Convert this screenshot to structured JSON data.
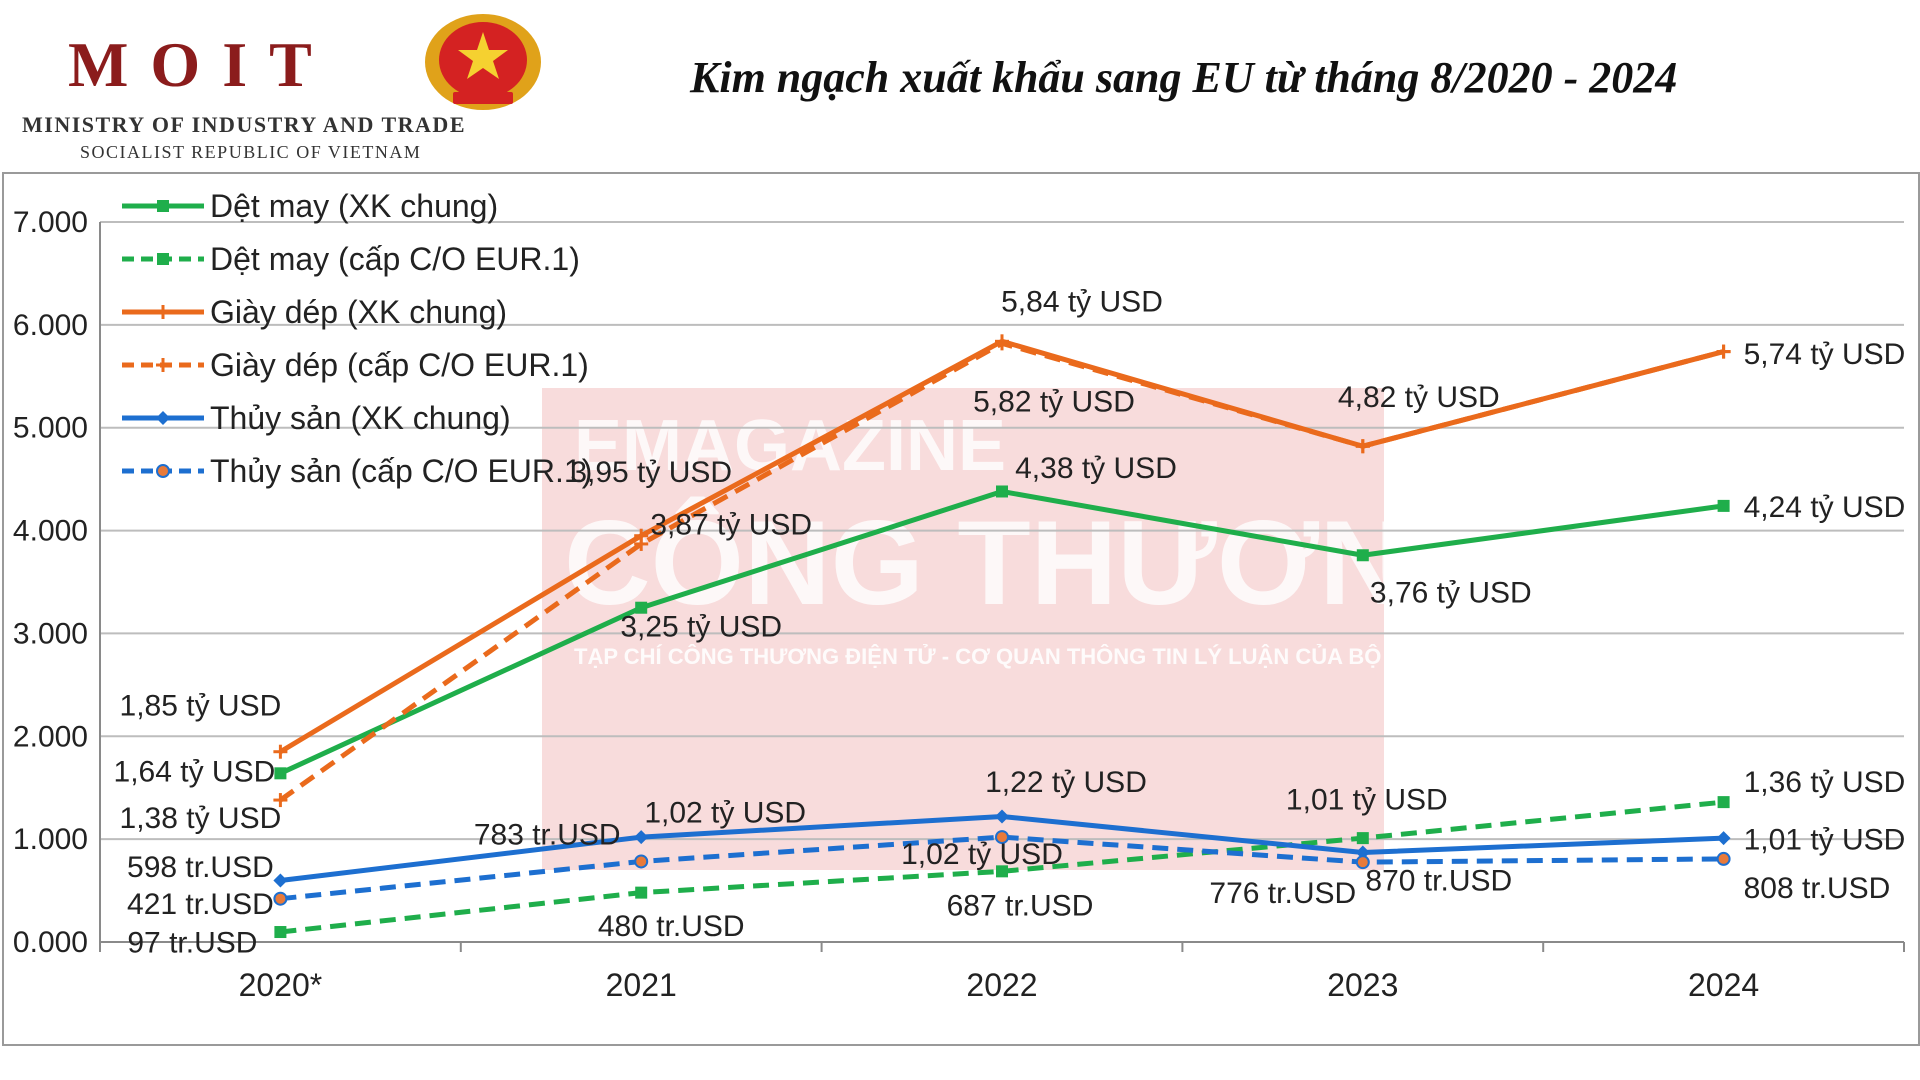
{
  "header": {
    "logo_text": "MOIT",
    "ministry": "MINISTRY OF INDUSTRY AND TRADE",
    "republic": "SOCIALIST REPUBLIC OF VIETNAM",
    "title": "Kim ngạch xuất khẩu sang EU từ tháng 8/2020 - 2024"
  },
  "watermark": {
    "line1": "EMAGAZINE",
    "line2": "CÔNG THƯƠNG",
    "line3": "TẠP CHÍ CÔNG THƯƠNG ĐIỆN TỬ - CƠ QUAN THÔNG TIN LÝ LUẬN CỦA BỘ CÔNG THƯƠNG"
  },
  "chart_data": {
    "type": "line",
    "title": "Kim ngạch xuất khẩu sang EU từ tháng 8/2020 - 2024",
    "categories": [
      "2020*",
      "2021",
      "2022",
      "2023",
      "2024"
    ],
    "ylim": [
      0,
      7000
    ],
    "yticks": [
      0,
      1000,
      2000,
      3000,
      4000,
      5000,
      6000,
      7000
    ],
    "ytick_labels": [
      "0.000",
      "1.000",
      "2.000",
      "3.000",
      "4.000",
      "5.000",
      "6.000",
      "7.000"
    ],
    "grid": true,
    "legend_position": "top-left",
    "series": [
      {
        "name": "Dệt may (XK chung)",
        "color": "#1fae4b",
        "dashed": false,
        "marker": "square",
        "values": [
          1640,
          3250,
          4380,
          3760,
          4240
        ]
      },
      {
        "name": "Dệt may (cấp C/O EUR.1)",
        "color": "#1fae4b",
        "dashed": true,
        "marker": "square",
        "values": [
          97,
          480,
          687,
          1010,
          1360
        ]
      },
      {
        "name": "Giày dép (XK chung)",
        "color": "#ea6a1c",
        "dashed": false,
        "marker": "plus",
        "values": [
          1850,
          3950,
          5840,
          4820,
          5740
        ]
      },
      {
        "name": "Giày dép (cấp C/O EUR.1)",
        "color": "#ea6a1c",
        "dashed": true,
        "marker": "plus",
        "values": [
          1380,
          3870,
          5820,
          4820,
          5740
        ]
      },
      {
        "name": "Thủy sản (XK chung)",
        "color": "#1d6fd0",
        "dashed": false,
        "marker": "diamond",
        "values": [
          598,
          1020,
          1220,
          870,
          1010
        ]
      },
      {
        "name": "Thủy sản (cấp C/O EUR.1)",
        "color": "#1d6fd0",
        "dashed": true,
        "marker": "circle",
        "values": [
          421,
          783,
          1020,
          776,
          808
        ]
      }
    ],
    "annotations": [
      {
        "text": "1,85 tỷ USD",
        "cat": 0,
        "value": 2200,
        "anchor": "middle",
        "dx": -80
      },
      {
        "text": "1,64 tỷ USD",
        "cat": 0,
        "value": 1560,
        "anchor": "middle",
        "dx": -86
      },
      {
        "text": "1,38 tỷ USD",
        "cat": 0,
        "value": 1110,
        "anchor": "middle",
        "dx": -80
      },
      {
        "text": "598 tr.USD",
        "cat": 0,
        "value": 630,
        "anchor": "middle",
        "dx": -80
      },
      {
        "text": "421 tr.USD",
        "cat": 0,
        "value": 270,
        "anchor": "middle",
        "dx": -80
      },
      {
        "text": "97 tr.USD",
        "cat": 0,
        "value": -100,
        "anchor": "middle",
        "dx": -88
      },
      {
        "text": "3,95 tỷ USD",
        "cat": 1,
        "value": 4470,
        "anchor": "middle",
        "dx": 10
      },
      {
        "text": "3,87 tỷ USD",
        "cat": 1,
        "value": 3960,
        "anchor": "middle",
        "dx": 90
      },
      {
        "text": "3,25 tỷ USD",
        "cat": 1,
        "value": 2970,
        "anchor": "middle",
        "dx": 60
      },
      {
        "text": "1,02 tỷ USD",
        "cat": 1,
        "value": 1160,
        "anchor": "middle",
        "dx": 84
      },
      {
        "text": "783 tr.USD",
        "cat": 1,
        "value": 950,
        "anchor": "middle",
        "dx": -94
      },
      {
        "text": "480 tr.USD",
        "cat": 1,
        "value": 60,
        "anchor": "middle",
        "dx": 30
      },
      {
        "text": "5,84 tỷ USD",
        "cat": 2,
        "value": 6130,
        "anchor": "middle",
        "dx": 80
      },
      {
        "text": "5,82 tỷ USD",
        "cat": 2,
        "value": 5160,
        "anchor": "middle",
        "dx": 52
      },
      {
        "text": "4,38 tỷ USD",
        "cat": 2,
        "value": 4510,
        "anchor": "middle",
        "dx": 94
      },
      {
        "text": "1,22 tỷ USD",
        "cat": 2,
        "value": 1460,
        "anchor": "middle",
        "dx": 64
      },
      {
        "text": "1,02 tỷ USD",
        "cat": 2,
        "value": 760,
        "anchor": "middle",
        "dx": -20
      },
      {
        "text": "687 tr.USD",
        "cat": 2,
        "value": 260,
        "anchor": "middle",
        "dx": 18
      },
      {
        "text": "4,82 tỷ USD",
        "cat": 3,
        "value": 5200,
        "anchor": "middle",
        "dx": 56
      },
      {
        "text": "3,76 tỷ USD",
        "cat": 3,
        "value": 3300,
        "anchor": "middle",
        "dx": 88
      },
      {
        "text": "1,01 tỷ USD",
        "cat": 3,
        "value": 1290,
        "anchor": "middle",
        "dx": 4
      },
      {
        "text": "870 tr.USD",
        "cat": 3,
        "value": 500,
        "anchor": "middle",
        "dx": 76
      },
      {
        "text": "776 tr.USD",
        "cat": 3,
        "value": 380,
        "anchor": "middle",
        "dx": -80
      },
      {
        "text": "5,74 tỷ USD",
        "cat": 4,
        "value": 5620,
        "anchor": "start",
        "dx": 20
      },
      {
        "text": "4,24 tỷ USD",
        "cat": 4,
        "value": 4130,
        "anchor": "start",
        "dx": 20
      },
      {
        "text": "1,36 tỷ USD",
        "cat": 4,
        "value": 1460,
        "anchor": "start",
        "dx": 20
      },
      {
        "text": "1,01 tỷ USD",
        "cat": 4,
        "value": 900,
        "anchor": "start",
        "dx": 20
      },
      {
        "text": "808 tr.USD",
        "cat": 4,
        "value": 430,
        "anchor": "start",
        "dx": 20
      }
    ]
  }
}
